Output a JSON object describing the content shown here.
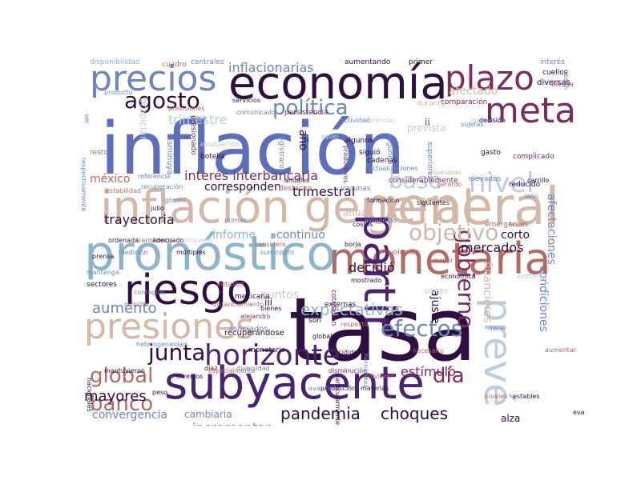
{
  "palette": {
    "indigo": "#5d6fbb",
    "slate": "#6e86b8",
    "tan": "#d3b8a8",
    "rose": "#b26a63",
    "plum": "#7b2d5e",
    "deep": "#2e0f3f",
    "violet": "#4b2270",
    "sky": "#8cb5c9",
    "pale": "#bccde0",
    "mauve": "#96708a"
  },
  "words": [
    {
      "text": "inflación",
      "color": "#5d6fbb"
    },
    {
      "text": "tasa",
      "color": "#2e0f3f"
    },
    {
      "text": "economía",
      "color": "#2e0f3f"
    },
    {
      "text": "general",
      "color": "#d3b8a8"
    },
    {
      "text": "inflación general",
      "color": "#d3b8a8"
    },
    {
      "text": "subyacente",
      "color": "#4b2270"
    },
    {
      "text": "pronóstico",
      "color": "#8cb5c9"
    },
    {
      "text": "monetaria",
      "color": "#b26a63"
    },
    {
      "text": "riesgo",
      "color": "#2e0f3f"
    },
    {
      "text": "presiones",
      "color": "#d3b8a8"
    },
    {
      "text": "precios",
      "color": "#6e86b8"
    },
    {
      "text": "plazo",
      "color": "#7b2d5e"
    },
    {
      "text": "partir",
      "color": "#4b2270"
    },
    {
      "text": "prevé",
      "color": "#bccde0"
    },
    {
      "text": "meta",
      "color": "#7b2d5e"
    },
    {
      "text": "horizonte",
      "color": "#4b2270"
    },
    {
      "text": "agosto",
      "color": "#2e0f3f"
    },
    {
      "text": "política",
      "color": "#6e86b8"
    },
    {
      "text": "efectos",
      "color": "#6e86b8"
    },
    {
      "text": "junta",
      "color": "#2e0f3f"
    },
    {
      "text": "gobierno",
      "color": "#7b2d5e"
    },
    {
      "text": "banco",
      "color": "#b26a63"
    },
    {
      "text": "global",
      "color": "#b26a63"
    },
    {
      "text": "día",
      "color": "#7b2d5e"
    },
    {
      "text": "objetivo",
      "color": "#d3b8a8"
    },
    {
      "text": "nivel",
      "color": "#bccde0"
    },
    {
      "text": "base",
      "color": "#bccde0"
    },
    {
      "text": "pandemia",
      "color": "#2e0f3f"
    },
    {
      "text": "choques",
      "color": "#2e0f3f"
    },
    {
      "text": "expectativas",
      "color": "#8cb5c9"
    },
    {
      "text": "aumento",
      "color": "#6e86b8"
    },
    {
      "text": "trimestre",
      "color": "#bccde0"
    },
    {
      "text": "interés interbancaria",
      "color": "#7b2d5e"
    },
    {
      "text": "inflacionarias",
      "color": "#6e86b8"
    },
    {
      "text": "trayectoria",
      "color": "#2e0f3f"
    },
    {
      "text": "trimestral",
      "color": "#2e0f3f"
    },
    {
      "text": "decidió",
      "color": "#2e0f3f"
    },
    {
      "text": "mercados",
      "color": "#2e0f3f"
    },
    {
      "text": "mayores",
      "color": "#2e0f3f"
    },
    {
      "text": "incrementar",
      "color": "#6e86b8"
    },
    {
      "text": "estímulo",
      "color": "#7b2d5e"
    },
    {
      "text": "convergencia",
      "color": "#6e86b8"
    },
    {
      "text": "informe",
      "color": "#8cb5c9"
    },
    {
      "text": "continuó",
      "color": "#6e86b8"
    },
    {
      "text": "puntos",
      "color": "#bccde0"
    },
    {
      "text": "afectaciones",
      "color": "#6e86b8"
    },
    {
      "text": "condiciones",
      "color": "#6e86b8"
    },
    {
      "text": "financieros",
      "color": "#d3b8a8"
    },
    {
      "text": "ajuste",
      "color": "#2e0f3f"
    },
    {
      "text": "méxico",
      "color": "#b26a63"
    },
    {
      "text": "corresponden",
      "color": "#2e0f3f"
    },
    {
      "text": "afectado",
      "color": "#d3b8a8"
    },
    {
      "text": "corto",
      "color": "#2e0f3f"
    },
    {
      "text": "alza",
      "color": "#2e0f3f"
    },
    {
      "text": "cambiaria",
      "color": "#6e86b8"
    },
    {
      "text": "anual",
      "color": "#d3b8a8"
    },
    {
      "text": "prevista",
      "color": "#bccde0"
    },
    {
      "text": "ii",
      "color": "#7b2d5e"
    },
    {
      "text": "año",
      "color": "#2e0f3f"
    },
    {
      "text": "iii",
      "color": "#2e0f3f"
    },
    {
      "text": "asociados",
      "color": "#6e86b8"
    },
    {
      "text": "recuperándose",
      "color": "#2e0f3f"
    },
    {
      "text": "disponibilidad",
      "color": "#8cb5c9"
    },
    {
      "text": "centrales",
      "color": "#6e86b8"
    },
    {
      "text": "cuadro",
      "color": "#b26a63"
    },
    {
      "text": "aumentando",
      "color": "#2e0f3f"
    },
    {
      "text": "primer",
      "color": "#2e0f3f"
    },
    {
      "text": "interés",
      "color": "#6e86b8"
    },
    {
      "text": "cuellos",
      "color": "#2e0f3f"
    },
    {
      "text": "holgura",
      "color": "#bccde0"
    },
    {
      "text": "diversas",
      "color": "#2e0f3f"
    },
    {
      "text": "comparación",
      "color": "#7b2d5e"
    },
    {
      "text": "durante",
      "color": "#d3b8a8"
    },
    {
      "text": "servicios",
      "color": "#2e0f3f"
    },
    {
      "text": "actividad",
      "color": "#6e86b8"
    },
    {
      "text": "diferencias",
      "color": "#bccde0"
    },
    {
      "text": "mantenido",
      "color": "#bccde0"
    },
    {
      "text": "decisión",
      "color": "#2e0f3f"
    },
    {
      "text": "persistencia",
      "color": "#7b2d5e"
    },
    {
      "text": "comunicado",
      "color": "#6e86b8"
    },
    {
      "text": "propiciar",
      "color": "#bccde0"
    },
    {
      "text": "previsiones",
      "color": "#b26a63"
    },
    {
      "text": "baja",
      "color": "#6e86b8"
    },
    {
      "text": "producto",
      "color": "#6e86b8"
    },
    {
      "text": "disminuya",
      "color": "#6e86b8"
    },
    {
      "text": "evaluación",
      "color": "#bccde0"
    },
    {
      "text": "botella",
      "color": "#2e0f3f"
    },
    {
      "text": "presionado",
      "color": "#7b2d5e"
    },
    {
      "text": "registraron",
      "color": "#6e86b8"
    },
    {
      "text": "aquel",
      "color": "#bccde0"
    },
    {
      "text": "productivos",
      "color": "#7b2d5e"
    },
    {
      "text": "algunos",
      "color": "#2e0f3f"
    },
    {
      "text": "siguió",
      "color": "#2e0f3f"
    },
    {
      "text": "cadenas",
      "color": "#2e0f3f"
    },
    {
      "text": "segundo",
      "color": "#6e86b8"
    },
    {
      "text": "actualizaciones",
      "color": "#6e86b8"
    },
    {
      "text": "superiores",
      "color": "#6e86b8"
    },
    {
      "text": "gasto",
      "color": "#2e0f3f"
    },
    {
      "text": "complicado",
      "color": "#7b2d5e"
    },
    {
      "text": "resto",
      "color": "#b26a63"
    },
    {
      "text": "referencia",
      "color": "#6e86b8"
    },
    {
      "text": "recuperación",
      "color": "#6e86b8"
    },
    {
      "text": "estabilidad",
      "color": "#b26a63"
    },
    {
      "text": "respectivamente",
      "color": "#6e86b8"
    },
    {
      "text": "considerablemente",
      "color": "#7b2d5e"
    },
    {
      "text": "elevados",
      "color": "#6e86b8"
    },
    {
      "text": "reducido",
      "color": "#2e0f3f"
    },
    {
      "text": "carrillo",
      "color": "#2e0f3f"
    },
    {
      "text": "gerardo",
      "color": "#b26a63"
    },
    {
      "text": "león",
      "color": "#6e86b8"
    },
    {
      "text": "vacunas",
      "color": "#6e86b8"
    },
    {
      "text": "destacan",
      "color": "#b26a63"
    },
    {
      "text": "julio",
      "color": "#2e0f3f"
    },
    {
      "text": "costos",
      "color": "#2e0f3f"
    },
    {
      "text": "extendido",
      "color": "#6e86b8"
    },
    {
      "text": "emergentes",
      "color": "#b26a63"
    },
    {
      "text": "favor",
      "color": "#b26a63"
    },
    {
      "text": "ordenada",
      "color": "#2e0f3f"
    },
    {
      "text": "transitorios",
      "color": "#b26a63"
    },
    {
      "text": "adecuado",
      "color": "#2e0f3f"
    },
    {
      "text": "procesos",
      "color": "#bccde0"
    },
    {
      "text": "múltiples",
      "color": "#2e0f3f"
    },
    {
      "text": "medición",
      "color": "#6e86b8"
    },
    {
      "text": "prensa",
      "color": "#2e0f3f"
    },
    {
      "text": "evolución",
      "color": "#b26a63"
    },
    {
      "text": "sectores",
      "color": "#2e0f3f"
    },
    {
      "text": "contagios",
      "color": "#6e86b8"
    },
    {
      "text": "mantenga",
      "color": "#6e86b8"
    },
    {
      "text": "votaron",
      "color": "#b26a63"
    },
    {
      "text": "mexicana",
      "color": "#2e0f3f"
    },
    {
      "text": "cotización",
      "color": "#7b2d5e"
    },
    {
      "text": "mostrado",
      "color": "#2e0f3f"
    },
    {
      "text": "países",
      "color": "#bccde0"
    },
    {
      "text": "económica",
      "color": "#2e0f3f"
    },
    {
      "text": "reforzar",
      "color": "#b26a63"
    },
    {
      "text": "distanciamiento",
      "color": "#b26a63"
    },
    {
      "text": "bienes",
      "color": "#2e0f3f"
    },
    {
      "text": "son",
      "color": "#2e0f3f"
    },
    {
      "text": "externas",
      "color": "#2e0f3f"
    },
    {
      "text": "irene",
      "color": "#6e86b8"
    },
    {
      "text": "aumentar",
      "color": "#b26a63"
    },
    {
      "text": "monetario",
      "color": "#2e0f3f"
    },
    {
      "text": "incidido",
      "color": "#2e0f3f"
    },
    {
      "text": "necesario",
      "color": "#b26a63"
    },
    {
      "text": "heterogeneidad",
      "color": "#6e86b8"
    },
    {
      "text": "mantuvieron",
      "color": "#2e0f3f"
    },
    {
      "text": "díaz",
      "color": "#2e0f3f"
    },
    {
      "text": "especialmente",
      "color": "#b26a63"
    },
    {
      "text": "diversidad",
      "color": "#6e86b8"
    },
    {
      "text": "disminución",
      "color": "#7b2d5e"
    },
    {
      "text": "particularmente",
      "color": "#2e0f3f"
    },
    {
      "text": "diversos",
      "color": "#2e0f3f"
    },
    {
      "text": "producción",
      "color": "#2e0f3f"
    },
    {
      "text": "peso",
      "color": "#2e0f3f"
    },
    {
      "text": "niveles",
      "color": "#b26a63"
    },
    {
      "text": "nacionales",
      "color": "#2e0f3f"
    },
    {
      "text": "avanzadas",
      "color": "#6e86b8"
    },
    {
      "text": "estables",
      "color": "#2e0f3f"
    },
    {
      "text": "materias",
      "color": "#2e0f3f"
    },
    {
      "text": "volvieron",
      "color": "#b26a63"
    },
    {
      "text": "globales",
      "color": "#2e0f3f"
    },
    {
      "text": "respecto",
      "color": "#b26a63"
    },
    {
      "text": "suministro",
      "color": "#6e86b8"
    },
    {
      "text": "considero",
      "color": "#b26a63"
    },
    {
      "text": "primas",
      "color": "#6e86b8"
    },
    {
      "text": "anuales",
      "color": "#2e0f3f"
    },
    {
      "text": "formación",
      "color": "#2e0f3f"
    },
    {
      "text": "siguientes",
      "color": "#2e0f3f"
    },
    {
      "text": "sujetas",
      "color": "#6e86b8"
    },
    {
      "text": "brecha",
      "color": "#b26a63"
    },
    {
      "text": "health",
      "color": "#6e86b8"
    },
    {
      "text": "esperadas",
      "color": "#d3b8a8"
    },
    {
      "text": "financieras",
      "color": "#d3b8a8"
    },
    {
      "text": "hernández",
      "color": "#6e86b8"
    },
    {
      "text": "ver",
      "color": "#6e86b8"
    },
    {
      "text": "gómez",
      "color": "#6e86b8"
    },
    {
      "text": "borja",
      "color": "#2e0f3f"
    },
    {
      "text": "mayor",
      "color": "#b26a63"
    },
    {
      "text": "existan",
      "color": "#bccde0"
    },
    {
      "text": "anuncio",
      "color": "#bccde0"
    },
    {
      "text": "alejandro",
      "color": "#7b2d5e"
    },
    {
      "text": "factores",
      "color": "#bccde0"
    },
    {
      "text": "evaluará",
      "color": "#2e0f3f"
    },
    {
      "text": "persistente",
      "color": "#bccde0"
    },
    {
      "text": "sea",
      "color": "#2e0f3f"
    },
    {
      "text": "espinosa",
      "color": "#6e86b8"
    },
    {
      "text": "magnitud",
      "color": "#6e86b8"
    },
    {
      "text": "inciden",
      "color": "#6e86b8"
    },
    {
      "text": "congruente",
      "color": "#b26a63"
    },
    {
      "text": "social",
      "color": "#bccde0"
    },
    {
      "text": "considerando",
      "color": "#bccde0"
    },
    {
      "text": "prevén",
      "color": "#b26a63"
    },
    {
      "text": "converja",
      "color": "#6e86b8"
    },
    {
      "text": "apoyar",
      "color": "#b26a63"
    },
    {
      "text": "opere",
      "color": "#b26a63"
    },
    {
      "text": "mediano",
      "color": "#bccde0"
    },
    {
      "text": "relativos",
      "color": "#bccde0"
    },
    {
      "text": "jonathan",
      "color": "#2e0f3f"
    },
    {
      "text": "iv",
      "color": "#6e86b8"
    }
  ]
}
